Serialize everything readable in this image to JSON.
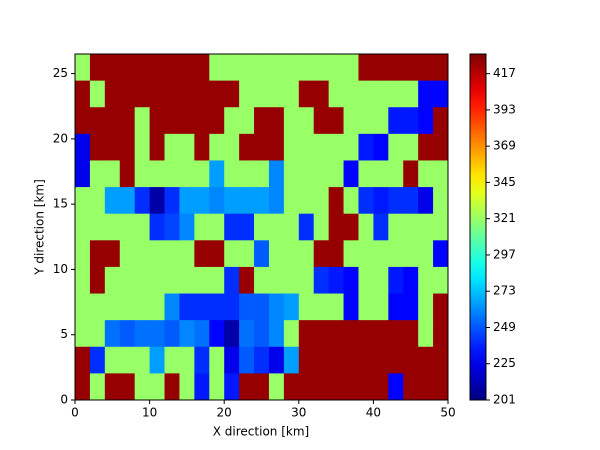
{
  "chart_data": {
    "type": "heatmap",
    "colormap": "jet",
    "xlabel": "X direction [km]",
    "ylabel": "Y direction [km]",
    "xlim": [
      0,
      50
    ],
    "xticks": [
      0,
      10,
      20,
      30,
      40,
      50
    ],
    "ylim": [
      0,
      26.5
    ],
    "yticks": [
      0,
      5,
      10,
      15,
      20,
      25
    ],
    "zlim": [
      201,
      430
    ],
    "zticks": [
      201,
      225,
      249,
      273,
      297,
      321,
      345,
      369,
      393,
      417
    ],
    "z": [
      [
        321,
        425,
        425,
        425,
        425,
        425,
        425,
        425,
        425,
        321,
        321,
        321,
        321,
        321,
        321,
        321,
        321,
        321,
        321,
        425,
        425,
        425,
        425,
        425,
        425
      ],
      [
        425,
        321,
        425,
        425,
        425,
        425,
        425,
        425,
        425,
        425,
        425,
        321,
        321,
        321,
        321,
        425,
        425,
        321,
        321,
        321,
        321,
        321,
        321,
        230,
        230
      ],
      [
        425,
        425,
        425,
        425,
        321,
        425,
        425,
        425,
        425,
        425,
        321,
        321,
        425,
        425,
        321,
        321,
        425,
        425,
        321,
        321,
        321,
        235,
        235,
        230,
        425
      ],
      [
        225,
        425,
        425,
        425,
        321,
        425,
        321,
        321,
        425,
        321,
        321,
        425,
        425,
        425,
        321,
        321,
        321,
        321,
        321,
        235,
        230,
        321,
        321,
        425,
        425
      ],
      [
        225,
        321,
        321,
        425,
        321,
        321,
        321,
        321,
        321,
        265,
        321,
        321,
        321,
        260,
        321,
        321,
        321,
        321,
        230,
        321,
        321,
        321,
        425,
        321,
        321
      ],
      [
        321,
        321,
        265,
        265,
        240,
        210,
        240,
        265,
        265,
        260,
        265,
        265,
        265,
        260,
        321,
        321,
        321,
        425,
        321,
        240,
        235,
        240,
        240,
        225,
        321
      ],
      [
        321,
        321,
        321,
        321,
        321,
        240,
        245,
        260,
        321,
        321,
        240,
        240,
        321,
        321,
        321,
        240,
        321,
        425,
        425,
        321,
        240,
        321,
        321,
        321,
        321
      ],
      [
        321,
        425,
        425,
        321,
        321,
        321,
        321,
        321,
        425,
        425,
        321,
        321,
        250,
        321,
        321,
        321,
        425,
        425,
        321,
        321,
        321,
        321,
        321,
        321,
        230
      ],
      [
        321,
        425,
        321,
        321,
        321,
        321,
        321,
        321,
        321,
        321,
        240,
        425,
        321,
        321,
        321,
        321,
        240,
        235,
        230,
        321,
        321,
        235,
        230,
        321,
        321
      ],
      [
        321,
        321,
        321,
        321,
        321,
        321,
        260,
        240,
        240,
        240,
        240,
        250,
        250,
        260,
        265,
        321,
        321,
        321,
        230,
        321,
        321,
        230,
        230,
        321,
        425
      ],
      [
        321,
        321,
        255,
        250,
        255,
        255,
        250,
        260,
        255,
        230,
        210,
        255,
        250,
        260,
        321,
        425,
        425,
        425,
        425,
        425,
        425,
        425,
        425,
        321,
        425
      ],
      [
        425,
        240,
        321,
        321,
        321,
        265,
        321,
        321,
        240,
        321,
        225,
        250,
        240,
        225,
        265,
        425,
        425,
        425,
        425,
        425,
        425,
        425,
        425,
        425,
        425
      ],
      [
        425,
        321,
        425,
        425,
        321,
        321,
        425,
        321,
        235,
        321,
        235,
        425,
        425,
        321,
        425,
        425,
        425,
        425,
        425,
        425,
        425,
        230,
        425,
        425,
        425
      ]
    ]
  }
}
